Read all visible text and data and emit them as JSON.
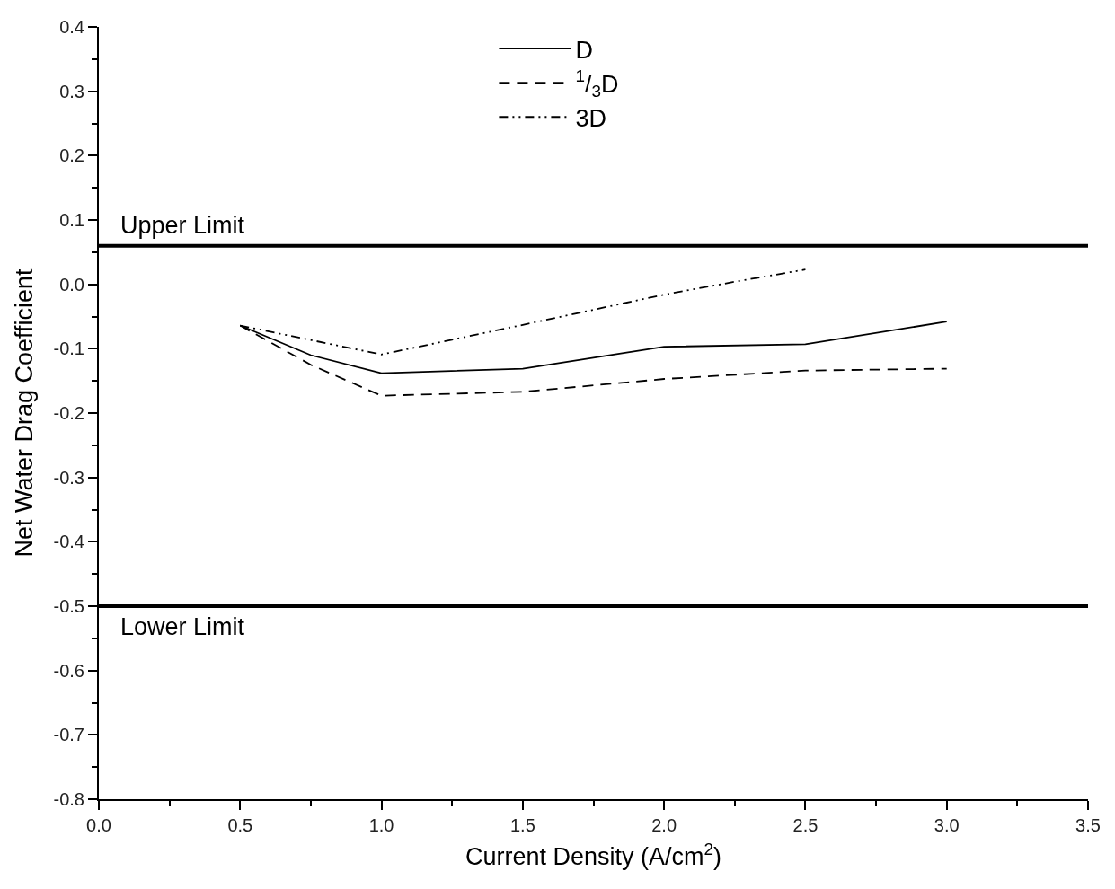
{
  "chart_data": {
    "type": "line",
    "xlabel": "Current Density (A/cm$^{2}$)",
    "ylabel": "Net Water Drag Coefficient",
    "x": [
      0.5,
      0.75,
      1.0,
      1.5,
      2.0,
      2.5,
      3.0
    ],
    "series": [
      {
        "name": "D",
        "color": "#000000",
        "line_style": "solid",
        "values": [
          -0.064,
          -0.11,
          -0.138,
          -0.131,
          -0.097,
          -0.093,
          -0.058
        ]
      },
      {
        "name": "$^{1}$/$_{3}$D",
        "color": "#000000",
        "line_style": "dashed",
        "values": [
          -0.064,
          -0.125,
          -0.173,
          -0.167,
          -0.147,
          -0.134,
          -0.131
        ]
      },
      {
        "name": "3D",
        "color": "#000000",
        "line_style": "dashdotdot",
        "x": [
          0.5,
          1.0,
          1.5,
          2.0,
          2.25,
          2.5
        ],
        "values": [
          -0.064,
          -0.109,
          -0.063,
          -0.016,
          0.004,
          0.023
        ]
      }
    ],
    "ref_lines": [
      {
        "axis": "y",
        "value": 0.06,
        "label": "Upper Limit",
        "color": "#000000"
      },
      {
        "axis": "y",
        "value": -0.5,
        "label": "Lower Limit",
        "color": "#000000"
      }
    ],
    "xlim": [
      0,
      3.5
    ],
    "xticks": [
      {
        "value": 0,
        "label": "0.0"
      },
      0.5,
      {
        "value": 1,
        "label": "1.0"
      },
      1.5,
      {
        "value": 2,
        "label": "2.0"
      },
      2.5,
      {
        "value": 3,
        "label": "3.0"
      },
      3.5
    ],
    "ylim": [
      -0.8,
      0.4
    ],
    "yticks": [
      -0.8,
      -0.7,
      -0.6,
      -0.5,
      -0.4,
      -0.3,
      -0.2,
      -0.1,
      {
        "value": 0,
        "label": "0.0"
      },
      0.1,
      0.2,
      0.3,
      0.4
    ],
    "legend": "top",
    "marker": "none"
  }
}
